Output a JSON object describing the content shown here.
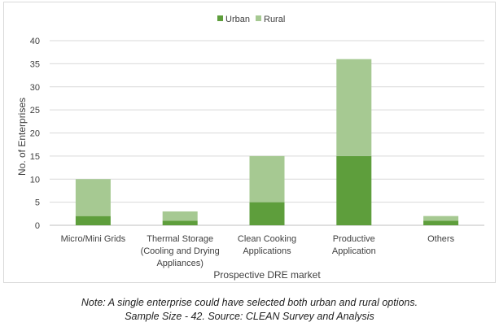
{
  "chart_data": {
    "type": "bar",
    "stacked": true,
    "categories": [
      [
        "Micro/Mini Grids"
      ],
      [
        "Thermal Storage",
        "(Cooling and Drying",
        "Appliances)"
      ],
      [
        "Clean Cooking",
        "Applications"
      ],
      [
        "Productive",
        "Application"
      ],
      [
        "Others"
      ]
    ],
    "series": [
      {
        "name": "Urban",
        "color": "#5e9e3c",
        "values": [
          2,
          1,
          5,
          15,
          1
        ]
      },
      {
        "name": "Rural",
        "color": "#a6c992",
        "values": [
          8,
          2,
          10,
          21,
          1
        ]
      }
    ],
    "xlabel": "Prospective DRE market",
    "ylabel": "No. of Enterprises",
    "ylim": [
      0,
      40
    ],
    "yticks": [
      0,
      5,
      10,
      15,
      20,
      25,
      30,
      35,
      40
    ],
    "grid": true,
    "legend": "top-center"
  },
  "note": {
    "line1": "Note: A single enterprise could have selected both urban and rural options.",
    "line2": "Sample Size -  42. Source: CLEAN Survey and Analysis"
  }
}
